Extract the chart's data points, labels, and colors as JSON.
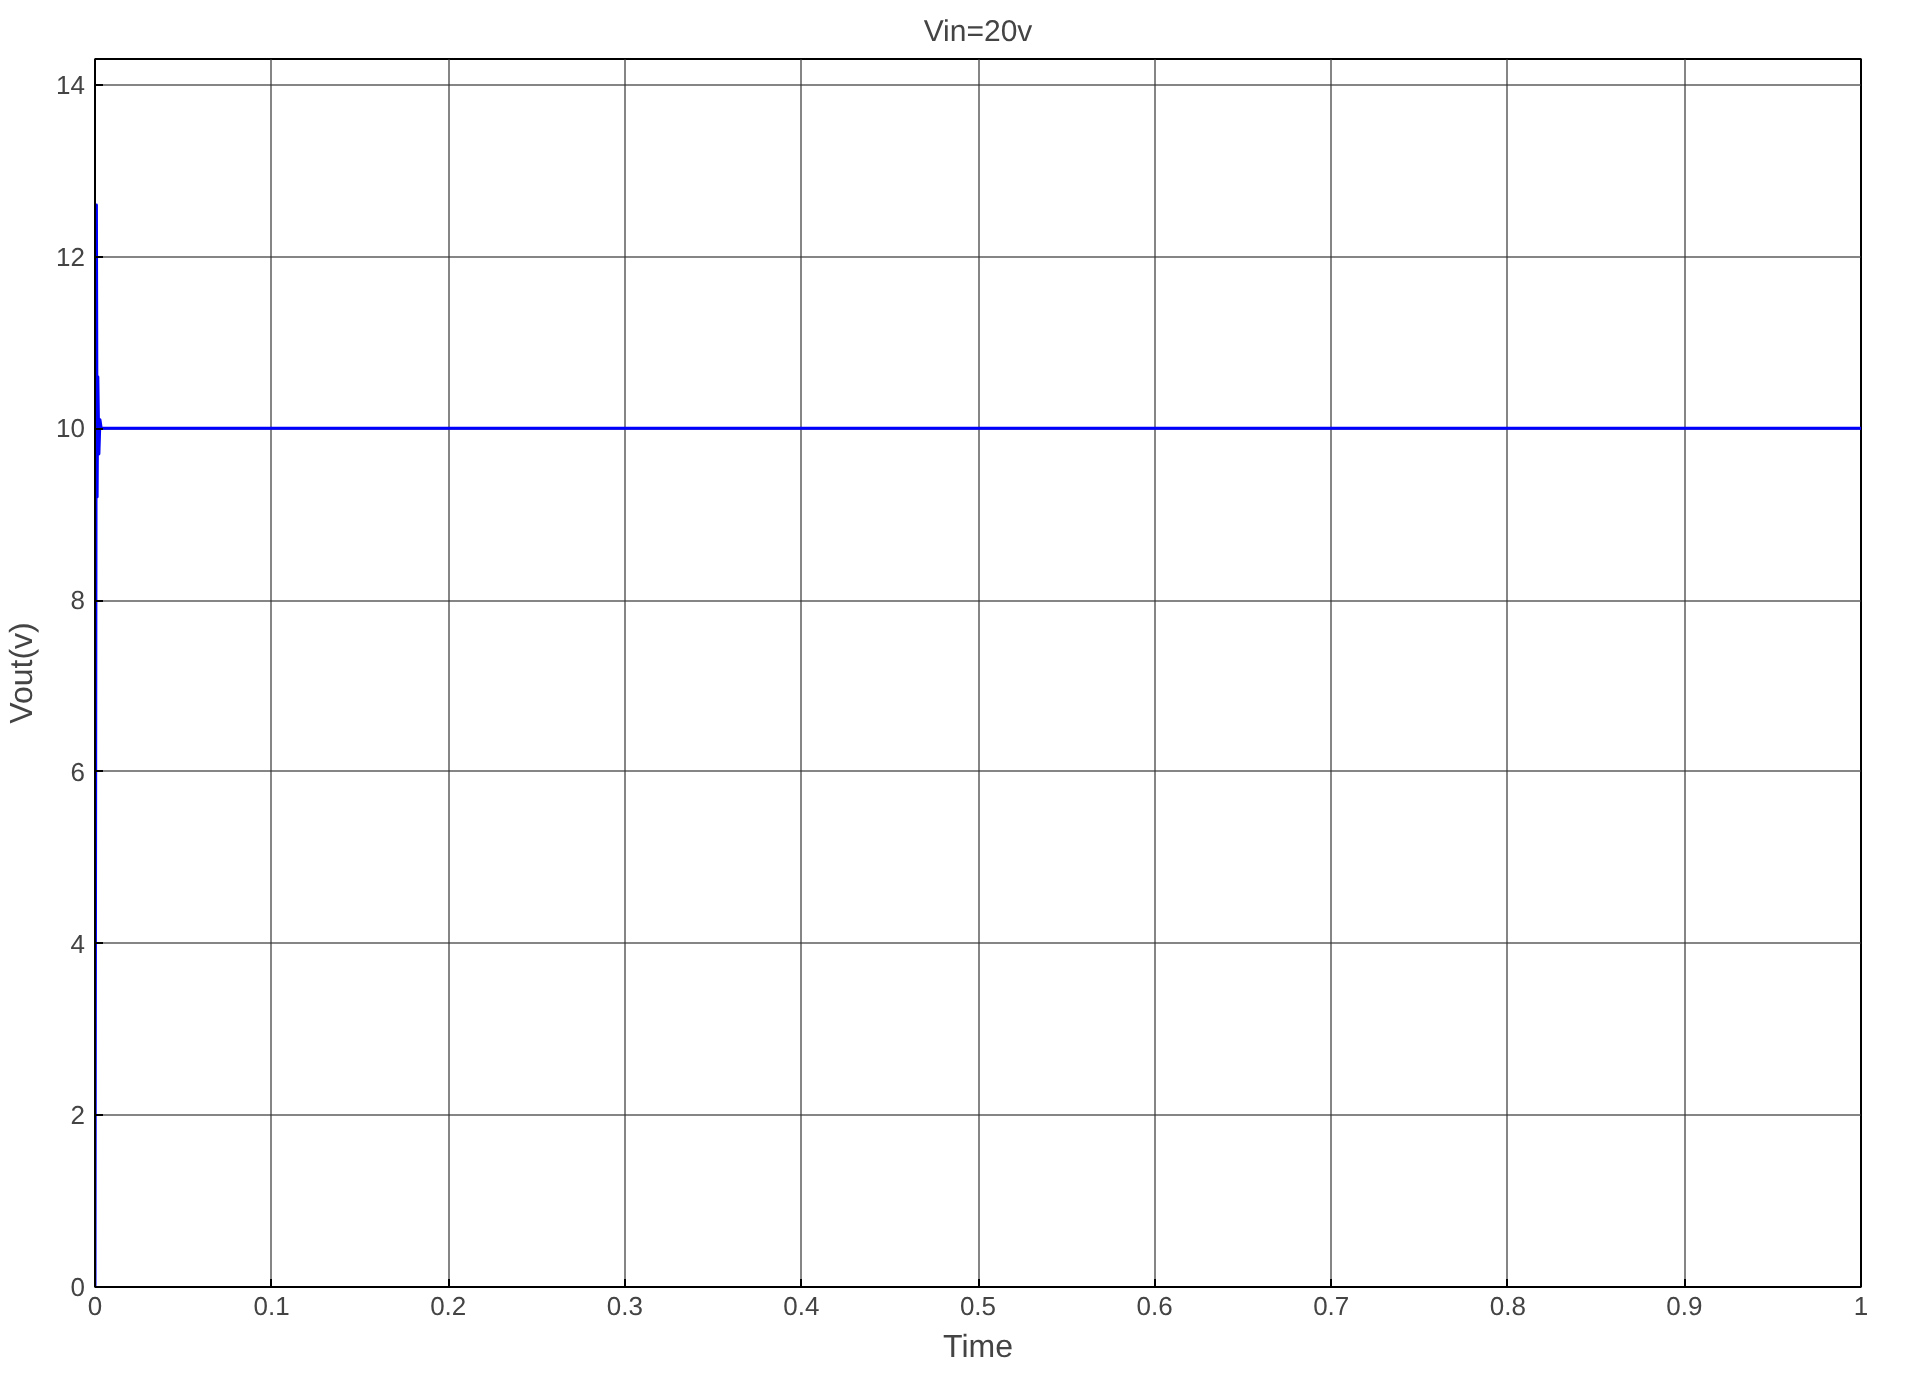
{
  "chart_data": {
    "type": "line",
    "title": "Vin=20v",
    "xlabel": "Time",
    "ylabel": "Vout(v)",
    "x": [
      0,
      0.0008,
      0.0012,
      0.0016,
      0.0022,
      0.0028,
      0.0035,
      0.005,
      0.2,
      0.5,
      0.8,
      1
    ],
    "series": [
      {
        "color": "#0000ff",
        "values": [
          0,
          12.6,
          9.2,
          10.6,
          9.7,
          10.1,
          10,
          10,
          10,
          10,
          10,
          10
        ]
      }
    ],
    "xlim": [
      0,
      1
    ],
    "ylim": [
      0,
      14.3
    ],
    "xticks": [
      0,
      0.1,
      0.2,
      0.3,
      0.4,
      0.5,
      0.6,
      0.7,
      0.8,
      0.9,
      1
    ],
    "yticks": [
      0,
      2,
      4,
      6,
      8,
      10,
      12,
      14
    ],
    "grid": true,
    "line_style": "solid",
    "marker": "none"
  }
}
